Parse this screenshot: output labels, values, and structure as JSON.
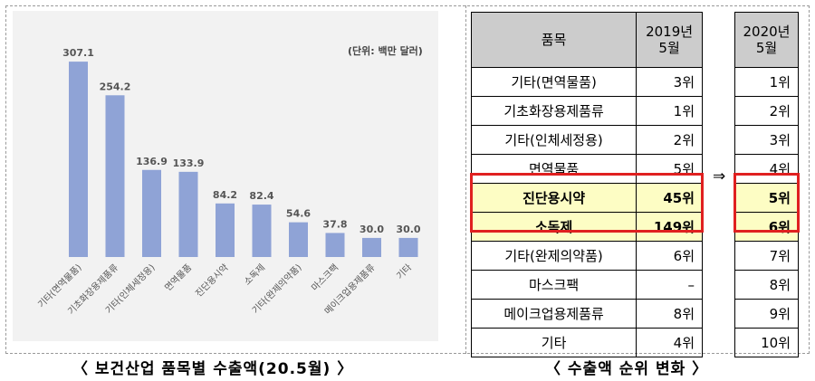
{
  "chart_data": {
    "type": "bar",
    "unit_note": "(단위: 백만 달러)",
    "categories": [
      "기타(면역물품)",
      "기초화장용제품류",
      "기타(인체세정용)",
      "면역물품",
      "진단용시약",
      "소독제",
      "기타(완제의약품)",
      "마스크팩",
      "메이크업용제품류",
      "기타"
    ],
    "values": [
      307.1,
      254.2,
      136.9,
      133.9,
      84.2,
      82.4,
      54.6,
      37.8,
      30.0,
      30.0
    ],
    "value_labels": [
      "307.1",
      "254.2",
      "136.9",
      "133.9",
      "84.2",
      "82.4",
      "54.6",
      "37.8",
      "30.0",
      "30.0"
    ],
    "ylim": [
      0,
      330
    ],
    "bar_color": "#8fa3d6"
  },
  "captions": {
    "left": "〈 보건산업 품목별 수출액(20.5월) 〉",
    "right": "〈 수출액 순위 변화 〉"
  },
  "table": {
    "header_item": "품목",
    "header_2019_line1": "2019년",
    "header_2019_line2": "5월",
    "header_2020_line1": "2020년",
    "header_2020_line2": "5월",
    "arrow": "⇒",
    "rows": [
      {
        "item": "기타(면역물품)",
        "rank2019": "3위",
        "rank2020": "1위"
      },
      {
        "item": "기초화장용제품류",
        "rank2019": "1위",
        "rank2020": "2위"
      },
      {
        "item": "기타(인체세정용)",
        "rank2019": "2위",
        "rank2020": "3위"
      },
      {
        "item": "면역물품",
        "rank2019": "5위",
        "rank2020": "4위"
      },
      {
        "item": "진단용시약",
        "rank2019": "45위",
        "rank2020": "5위"
      },
      {
        "item": "소독제",
        "rank2019": "149위",
        "rank2020": "6위"
      },
      {
        "item": "기타(완제의약품)",
        "rank2019": "6위",
        "rank2020": "7위"
      },
      {
        "item": "마스크팩",
        "rank2019": "–",
        "rank2020": "8위"
      },
      {
        "item": "메이크업용제품류",
        "rank2019": "8위",
        "rank2020": "9위"
      },
      {
        "item": "기타",
        "rank2019": "4위",
        "rank2020": "10위"
      }
    ],
    "highlight_color": "#e02020"
  }
}
